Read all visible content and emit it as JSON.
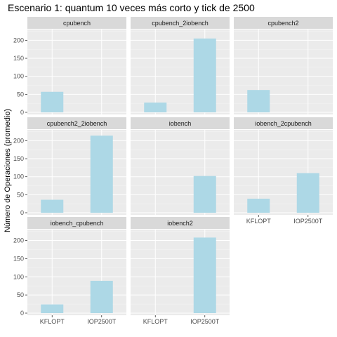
{
  "chart_data": {
    "type": "bar",
    "title": "Escenario 1: quantum 10 veces más corto y tick de 2500",
    "xlabel": "",
    "ylabel": "Número de Operaciones (promedio)",
    "categories": [
      "KFLOPT",
      "IOP2500T"
    ],
    "ylim": [
      0,
      230
    ],
    "yticks": [
      0,
      50,
      100,
      150,
      200
    ],
    "grid": true,
    "bar_color": "#add8e6",
    "panel_bg": "#ebebeb",
    "strip_bg": "#d9d9d9",
    "facets": [
      {
        "name": "cpubench",
        "values": [
          57,
          null
        ]
      },
      {
        "name": "cpubench_2iobench",
        "values": [
          27,
          205
        ]
      },
      {
        "name": "cpubench2",
        "values": [
          62,
          null
        ]
      },
      {
        "name": "cpubench2_2iobench",
        "values": [
          36,
          214
        ]
      },
      {
        "name": "iobench",
        "values": [
          null,
          102
        ]
      },
      {
        "name": "iobench_2cpubench",
        "values": [
          39,
          110
        ]
      },
      {
        "name": "iobench_cpubench",
        "values": [
          24,
          89
        ]
      },
      {
        "name": "iobench2",
        "values": [
          null,
          208
        ]
      }
    ]
  }
}
